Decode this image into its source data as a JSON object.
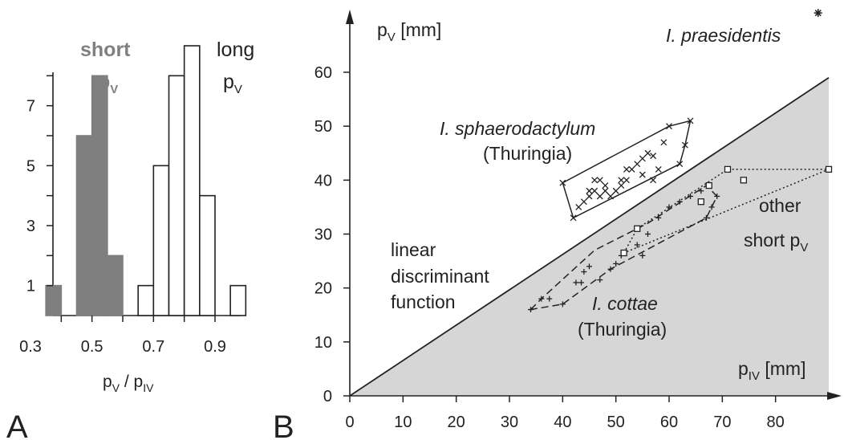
{
  "panels": {
    "a": "A",
    "b": "B"
  },
  "chart_data": [
    {
      "panel": "A",
      "type": "bar",
      "xlabel": "p_V / p_IV",
      "ylabel": "",
      "x_ticks": [
        "0.3",
        "0.5",
        "0.7",
        "0.9"
      ],
      "y_ticks": [
        "1",
        "3",
        "5",
        "7"
      ],
      "xlim": [
        0.3,
        1.0
      ],
      "ylim": [
        0,
        9
      ],
      "bin_width": 0.05,
      "series": [
        {
          "name": "short p_V",
          "fill": "#7f7f7f",
          "bins": [
            {
              "x0": 0.35,
              "x1": 0.4,
              "count": 1
            },
            {
              "x0": 0.45,
              "x1": 0.5,
              "count": 6
            },
            {
              "x0": 0.5,
              "x1": 0.55,
              "count": 8
            },
            {
              "x0": 0.55,
              "x1": 0.6,
              "count": 2
            }
          ]
        },
        {
          "name": "long p_V",
          "fill": "#ffffff",
          "bins": [
            {
              "x0": 0.65,
              "x1": 0.7,
              "count": 1
            },
            {
              "x0": 0.7,
              "x1": 0.75,
              "count": 5
            },
            {
              "x0": 0.75,
              "x1": 0.8,
              "count": 8
            },
            {
              "x0": 0.8,
              "x1": 0.85,
              "count": 9
            },
            {
              "x0": 0.85,
              "x1": 0.9,
              "count": 4
            },
            {
              "x0": 0.95,
              "x1": 1.0,
              "count": 1
            }
          ]
        }
      ],
      "legend": {
        "short_1": "short",
        "short_2": "p",
        "short_2_sub": "V",
        "long_1": "long",
        "long_2": "p",
        "long_2_sub": "V"
      },
      "xlabel_parts": {
        "p1": "p",
        "s1": "V",
        "mid": " / p",
        "s2": "IV"
      }
    },
    {
      "panel": "B",
      "type": "scatter",
      "xlabel": "p_IV [mm]",
      "ylabel": "p_V [mm]",
      "xlim": [
        0,
        90
      ],
      "ylim": [
        0,
        70
      ],
      "x_ticks": [
        "0",
        "10",
        "20",
        "30",
        "40",
        "50",
        "60",
        "70",
        "80"
      ],
      "y_ticks": [
        "0",
        "10",
        "20",
        "30",
        "40",
        "50",
        "60"
      ],
      "ylabel_parts": {
        "p": "p",
        "sub": "V",
        "unit": " [mm]"
      },
      "xlabel_parts": {
        "p": "p",
        "sub": "IV",
        "unit": " [mm]"
      },
      "discriminant_line": {
        "label_lines": [
          "linear",
          "discriminant",
          "function"
        ],
        "x": [
          0,
          90
        ],
        "y": [
          0,
          59
        ]
      },
      "series": [
        {
          "name": "I. sphaerodactylum (Thuringia)",
          "label_lines": [
            "I. sphaerodactylum",
            "(Thuringia)"
          ],
          "marker": "x",
          "hull_style": "solid",
          "hull": [
            [
              40,
              39.5
            ],
            [
              42,
              33
            ],
            [
              62,
              43
            ],
            [
              63,
              46.5
            ],
            [
              64,
              51
            ],
            [
              60,
              50
            ]
          ],
          "points": [
            [
              40,
              39.5
            ],
            [
              42,
              33
            ],
            [
              43,
              35
            ],
            [
              44,
              36
            ],
            [
              45,
              37
            ],
            [
              45,
              38
            ],
            [
              46,
              38
            ],
            [
              46,
              40
            ],
            [
              47,
              40
            ],
            [
              47,
              37
            ],
            [
              48,
              39
            ],
            [
              48,
              38
            ],
            [
              49,
              37
            ],
            [
              50,
              38
            ],
            [
              51,
              39
            ],
            [
              51,
              40
            ],
            [
              52,
              40
            ],
            [
              52,
              42
            ],
            [
              53,
              42
            ],
            [
              54,
              43
            ],
            [
              55,
              44
            ],
            [
              56,
              45
            ],
            [
              57,
              44.5
            ],
            [
              59,
              47
            ],
            [
              60,
              50
            ],
            [
              62,
              43
            ],
            [
              63,
              46.5
            ],
            [
              64,
              51
            ],
            [
              58,
              42
            ],
            [
              57,
              40
            ],
            [
              55,
              41
            ]
          ]
        },
        {
          "name": "I. cottae (Thuringia)",
          "label_lines": [
            "I. cottae",
            "(Thuringia)"
          ],
          "marker": "+",
          "hull_style": "dashed",
          "hull": [
            [
              34,
              16
            ],
            [
              36,
              18
            ],
            [
              46,
              27
            ],
            [
              56,
              32
            ],
            [
              67,
              39
            ],
            [
              69,
              37
            ],
            [
              67,
              33
            ],
            [
              49,
              23.5
            ],
            [
              40,
              17
            ]
          ],
          "points": [
            [
              34,
              16
            ],
            [
              36,
              18
            ],
            [
              37.5,
              18
            ],
            [
              40,
              17
            ],
            [
              42.5,
              21
            ],
            [
              43.5,
              21
            ],
            [
              45,
              24
            ],
            [
              47,
              21.5
            ],
            [
              49,
              23.5
            ],
            [
              50,
              24.5
            ],
            [
              51,
              26
            ],
            [
              54,
              28
            ],
            [
              56,
              30
            ],
            [
              58,
              33
            ],
            [
              60,
              35
            ],
            [
              62,
              36
            ],
            [
              64,
              37
            ],
            [
              66,
              38
            ],
            [
              67,
              33
            ],
            [
              68,
              35
            ],
            [
              69,
              37
            ],
            [
              55,
              26
            ],
            [
              44,
              23
            ]
          ]
        },
        {
          "name": "other short p_V",
          "label_lines": [
            "other",
            "short p"
          ],
          "label_sub": "V",
          "marker": "square",
          "hull_style": "dotted",
          "hull": [
            [
              51.5,
              26.5
            ],
            [
              54,
              31
            ],
            [
              71,
              42
            ],
            [
              90,
              42
            ]
          ],
          "points": [
            [
              51.5,
              26.5
            ],
            [
              54,
              31
            ],
            [
              66,
              36
            ],
            [
              67.5,
              39
            ],
            [
              71,
              42
            ],
            [
              74,
              40
            ],
            [
              90,
              42
            ]
          ]
        },
        {
          "name": "I. praesidentis",
          "marker": "star",
          "points": [
            [
              88,
              71
            ]
          ]
        }
      ]
    }
  ]
}
